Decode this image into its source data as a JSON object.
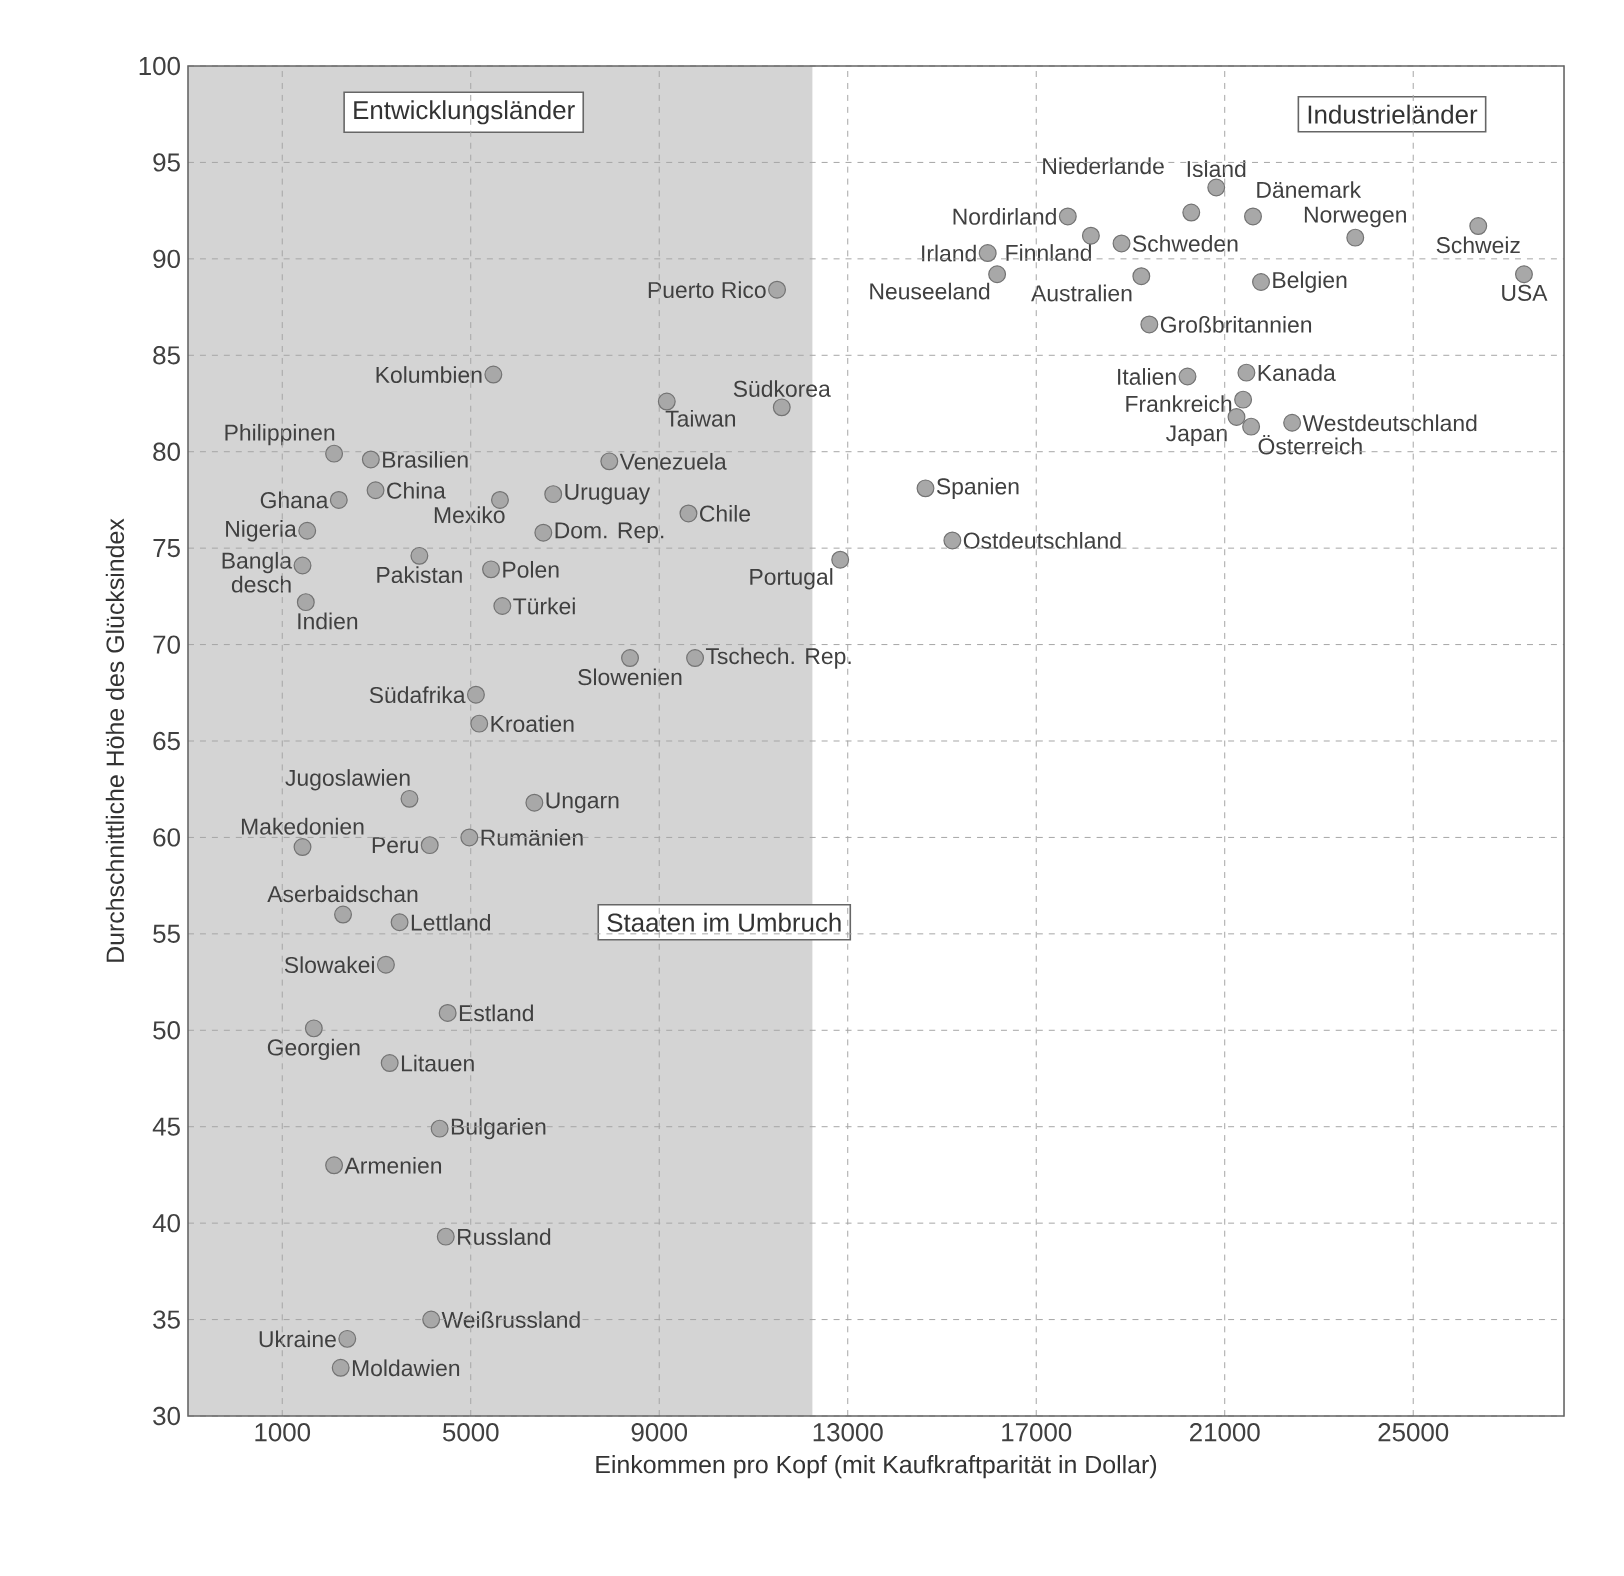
{
  "chart_data": {
    "type": "scatter",
    "xlabel": "Einkommen pro Kopf (mit Kaufkraftparität in Dollar)",
    "ylabel": "Durchschnittliche Höhe des Glücksindex",
    "xlim": [
      -1000,
      28200
    ],
    "ylim": [
      30,
      100
    ],
    "xticks": [
      1000,
      5000,
      9000,
      13000,
      17000,
      21000,
      25000
    ],
    "yticks": [
      30,
      35,
      40,
      45,
      50,
      55,
      60,
      65,
      70,
      75,
      80,
      85,
      90,
      95,
      100
    ],
    "grid": true,
    "marker": "circle",
    "bands": [
      {
        "axis": "x",
        "from": -1000,
        "to": 12250,
        "color": "#d4d4d4"
      }
    ],
    "annotations": [
      "Entwicklungsländer",
      "Industrieländer",
      "Staaten im Umbruch"
    ],
    "series": [
      {
        "name": "Puerto Rico",
        "color": "#a8a8a8",
        "x": [
          11500
        ],
        "values": [
          88.4
        ]
      },
      {
        "name": "Kolumbien",
        "color": "#a8a8a8",
        "x": [
          5480
        ],
        "values": [
          84.0
        ]
      },
      {
        "name": "Südkorea",
        "color": "#a8a8a8",
        "x": [
          11600
        ],
        "values": [
          82.3
        ]
      },
      {
        "name": "Taiwan",
        "color": "#a8a8a8",
        "x": [
          9160
        ],
        "values": [
          82.6
        ]
      },
      {
        "name": "Philippinen",
        "color": "#a8a8a8",
        "x": [
          2100
        ],
        "values": [
          79.9
        ]
      },
      {
        "name": "Brasilien",
        "color": "#a8a8a8",
        "x": [
          2880
        ],
        "values": [
          79.6
        ]
      },
      {
        "name": "Venezuela",
        "color": "#a8a8a8",
        "x": [
          7940
        ],
        "values": [
          79.5
        ]
      },
      {
        "name": "Ghana",
        "color": "#a8a8a8",
        "x": [
          2200
        ],
        "values": [
          77.5
        ]
      },
      {
        "name": "China",
        "color": "#a8a8a8",
        "x": [
          2980
        ],
        "values": [
          78.0
        ]
      },
      {
        "name": "Mexiko",
        "color": "#a8a8a8",
        "x": [
          5620
        ],
        "values": [
          77.5
        ]
      },
      {
        "name": "Uruguay",
        "color": "#a8a8a8",
        "x": [
          6750
        ],
        "values": [
          77.8
        ]
      },
      {
        "name": "Chile",
        "color": "#a8a8a8",
        "x": [
          9620
        ],
        "values": [
          76.8
        ]
      },
      {
        "name": "Nigeria",
        "color": "#a8a8a8",
        "x": [
          1530
        ],
        "values": [
          75.9
        ]
      },
      {
        "name": "Dom. Rep.",
        "color": "#a8a8a8",
        "x": [
          6540
        ],
        "values": [
          75.8
        ]
      },
      {
        "name": "Pakistan",
        "color": "#a8a8a8",
        "x": [
          3910
        ],
        "values": [
          74.6
        ]
      },
      {
        "name": "Polen",
        "color": "#a8a8a8",
        "x": [
          5430
        ],
        "values": [
          73.9
        ]
      },
      {
        "name": "Bangla desch",
        "color": "#a8a8a8",
        "x": [
          1430
        ],
        "values": [
          74.1
        ]
      },
      {
        "name": "Indien",
        "color": "#a8a8a8",
        "x": [
          1500
        ],
        "values": [
          72.2
        ]
      },
      {
        "name": "Türkei",
        "color": "#a8a8a8",
        "x": [
          5670
        ],
        "values": [
          72.0
        ]
      },
      {
        "name": "Portugal",
        "color": "#a8a8a8",
        "x": [
          12840
        ],
        "values": [
          74.4
        ]
      },
      {
        "name": "Slowenien",
        "color": "#a8a8a8",
        "x": [
          8380
        ],
        "values": [
          69.3
        ]
      },
      {
        "name": "Tschech. Rep.",
        "color": "#a8a8a8",
        "x": [
          9760
        ],
        "values": [
          69.3
        ]
      },
      {
        "name": "Südafrika",
        "color": "#a8a8a8",
        "x": [
          5110
        ],
        "values": [
          67.4
        ]
      },
      {
        "name": "Kroatien",
        "color": "#a8a8a8",
        "x": [
          5180
        ],
        "values": [
          65.9
        ]
      },
      {
        "name": "Jugoslawien",
        "color": "#a8a8a8",
        "x": [
          3700
        ],
        "values": [
          62.0
        ]
      },
      {
        "name": "Ungarn",
        "color": "#a8a8a8",
        "x": [
          6350
        ],
        "values": [
          61.8
        ]
      },
      {
        "name": "Makedonien",
        "color": "#a8a8a8",
        "x": [
          1430
        ],
        "values": [
          59.5
        ]
      },
      {
        "name": "Peru",
        "color": "#a8a8a8",
        "x": [
          4130
        ],
        "values": [
          59.6
        ]
      },
      {
        "name": "Rumänien",
        "color": "#a8a8a8",
        "x": [
          4970
        ],
        "values": [
          60.0
        ]
      },
      {
        "name": "Aserbaidschan",
        "color": "#a8a8a8",
        "x": [
          2290
        ],
        "values": [
          56.0
        ]
      },
      {
        "name": "Lettland",
        "color": "#a8a8a8",
        "x": [
          3490
        ],
        "values": [
          55.6
        ]
      },
      {
        "name": "Slowakei",
        "color": "#a8a8a8",
        "x": [
          3200
        ],
        "values": [
          53.4
        ]
      },
      {
        "name": "Estland",
        "color": "#a8a8a8",
        "x": [
          4510
        ],
        "values": [
          50.9
        ]
      },
      {
        "name": "Georgien",
        "color": "#a8a8a8",
        "x": [
          1670
        ],
        "values": [
          50.1
        ]
      },
      {
        "name": "Litauen",
        "color": "#a8a8a8",
        "x": [
          3280
        ],
        "values": [
          48.3
        ]
      },
      {
        "name": "Bulgarien",
        "color": "#a8a8a8",
        "x": [
          4340
        ],
        "values": [
          44.9
        ]
      },
      {
        "name": "Armenien",
        "color": "#a8a8a8",
        "x": [
          2100
        ],
        "values": [
          43.0
        ]
      },
      {
        "name": "Russland",
        "color": "#a8a8a8",
        "x": [
          4470
        ],
        "values": [
          39.3
        ]
      },
      {
        "name": "Weißrussland",
        "color": "#a8a8a8",
        "x": [
          4160
        ],
        "values": [
          35.0
        ]
      },
      {
        "name": "Ukraine",
        "color": "#a8a8a8",
        "x": [
          2380
        ],
        "values": [
          34.0
        ]
      },
      {
        "name": "Moldawien",
        "color": "#a8a8a8",
        "x": [
          2240
        ],
        "values": [
          32.5
        ]
      },
      {
        "name": "Niederlande",
        "color": "#a8a8a8",
        "x": [
          20290
        ],
        "values": [
          92.4
        ]
      },
      {
        "name": "Island",
        "color": "#a8a8a8",
        "x": [
          20820
        ],
        "values": [
          93.7
        ]
      },
      {
        "name": "Dänemark",
        "color": "#a8a8a8",
        "x": [
          21600
        ],
        "values": [
          92.2
        ]
      },
      {
        "name": "Finnland",
        "color": "#a8a8a8",
        "x": [
          18160
        ],
        "values": [
          91.2
        ]
      },
      {
        "name": "Nordirland",
        "color": "#a8a8a8",
        "x": [
          17670
        ],
        "values": [
          92.2
        ]
      },
      {
        "name": "Norwegen",
        "color": "#a8a8a8",
        "x": [
          23770
        ],
        "values": [
          91.1
        ]
      },
      {
        "name": "Schweiz",
        "color": "#a8a8a8",
        "x": [
          26380
        ],
        "values": [
          91.7
        ]
      },
      {
        "name": "Irland",
        "color": "#a8a8a8",
        "x": [
          15970
        ],
        "values": [
          90.3
        ]
      },
      {
        "name": "Schweden",
        "color": "#a8a8a8",
        "x": [
          18810
        ],
        "values": [
          90.8
        ]
      },
      {
        "name": "Neuseeland",
        "color": "#a8a8a8",
        "x": [
          16170
        ],
        "values": [
          89.2
        ]
      },
      {
        "name": "Australien",
        "color": "#a8a8a8",
        "x": [
          19230
        ],
        "values": [
          89.1
        ]
      },
      {
        "name": "USA",
        "color": "#a8a8a8",
        "x": [
          27350
        ],
        "values": [
          89.2
        ]
      },
      {
        "name": "Belgien",
        "color": "#a8a8a8",
        "x": [
          21770
        ],
        "values": [
          88.8
        ]
      },
      {
        "name": "Großbritannien",
        "color": "#a8a8a8",
        "x": [
          19400
        ],
        "values": [
          86.6
        ]
      },
      {
        "name": "Italien",
        "color": "#a8a8a8",
        "x": [
          20210
        ],
        "values": [
          83.9
        ]
      },
      {
        "name": "Kanada",
        "color": "#a8a8a8",
        "x": [
          21460
        ],
        "values": [
          84.1
        ]
      },
      {
        "name": "Frankreich",
        "color": "#a8a8a8",
        "x": [
          21390
        ],
        "values": [
          82.7
        ]
      },
      {
        "name": "Japan",
        "color": "#a8a8a8",
        "x": [
          21250
        ],
        "values": [
          81.8
        ]
      },
      {
        "name": "Österreich",
        "color": "#a8a8a8",
        "x": [
          21560
        ],
        "values": [
          81.3
        ]
      },
      {
        "name": "Westdeutschland",
        "color": "#a8a8a8",
        "x": [
          22430
        ],
        "values": [
          81.5
        ]
      },
      {
        "name": "Spanien",
        "color": "#a8a8a8",
        "x": [
          14650
        ],
        "values": [
          78.1
        ]
      },
      {
        "name": "Ostdeutschland",
        "color": "#a8a8a8",
        "x": [
          15220
        ],
        "values": [
          75.4
        ]
      }
    ]
  }
}
